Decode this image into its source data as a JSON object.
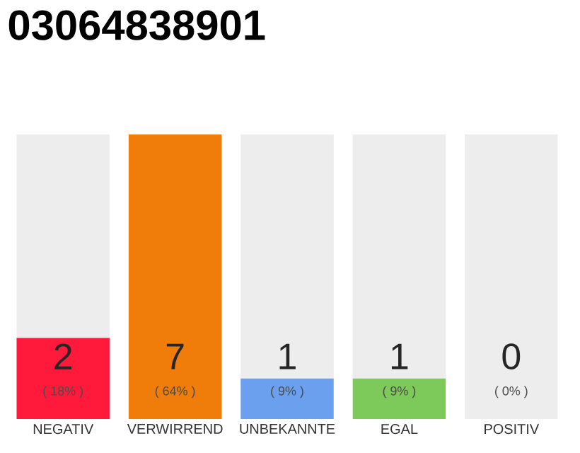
{
  "chart_data": {
    "type": "bar",
    "title": "03064838901",
    "categories": [
      "NEGATIV",
      "VERWIRREND",
      "UNBEKANNTE",
      "EGAL",
      "POSITIV"
    ],
    "stacked": true,
    "series": [
      {
        "values": [
          2,
          7,
          1,
          1,
          0
        ],
        "colors": [
          "#ff1a3c",
          "#f07d0a",
          "#6aa0ee",
          "#7dc95a",
          "#d0d0d0"
        ],
        "value_labels": [
          "2",
          "7",
          "1",
          "1",
          null
        ]
      },
      {
        "values": [
          5,
          0,
          6,
          6,
          7
        ],
        "color": "#ededed"
      }
    ],
    "ylim": [
      0,
      7
    ],
    "annotations": [
      "( 18% )",
      "( 64% )",
      "( 9% )",
      "( 9% )",
      "( 0% )",
      "0"
    ]
  }
}
